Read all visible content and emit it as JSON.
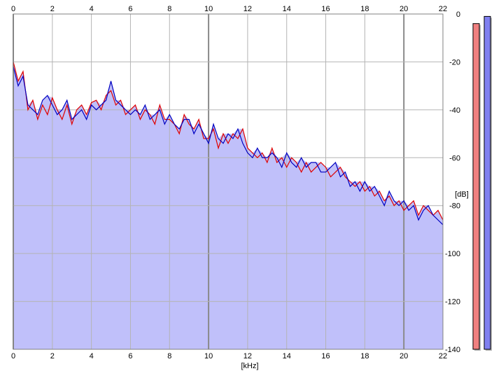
{
  "chart_data": {
    "type": "area",
    "title": "",
    "xlabel": "[kHz]",
    "ylabel": "[dB]",
    "xlim": [
      0,
      22
    ],
    "ylim": [
      -140,
      0
    ],
    "x_ticks": [
      "0",
      "2",
      "4",
      "6",
      "8",
      "10",
      "12",
      "14",
      "16",
      "18",
      "20",
      "22"
    ],
    "y_ticks": [
      "0",
      "-20",
      "-40",
      "-60",
      "-80",
      "-100",
      "-120",
      "-140"
    ],
    "grid": true,
    "fill_color": "#c0c0fa",
    "series": [
      {
        "color": "#e00000",
        "x": [
          0,
          0.25,
          0.5,
          0.75,
          1,
          1.25,
          1.5,
          1.75,
          2,
          2.25,
          2.5,
          2.75,
          3,
          3.25,
          3.5,
          3.75,
          4,
          4.25,
          4.5,
          4.75,
          5,
          5.25,
          5.5,
          5.75,
          6,
          6.25,
          6.5,
          6.75,
          7,
          7.25,
          7.5,
          7.75,
          8,
          8.25,
          8.5,
          8.75,
          9,
          9.25,
          9.5,
          9.75,
          10,
          10.25,
          10.5,
          10.75,
          11,
          11.25,
          11.5,
          11.75,
          12,
          12.25,
          12.5,
          12.75,
          13,
          13.25,
          13.5,
          13.75,
          14,
          14.25,
          14.5,
          14.75,
          15,
          15.25,
          15.5,
          15.75,
          16,
          16.25,
          16.5,
          16.75,
          17,
          17.25,
          17.5,
          17.75,
          18,
          18.25,
          18.5,
          18.75,
          19,
          19.25,
          19.5,
          19.75,
          20,
          20.25,
          20.5,
          20.75,
          21,
          21.25,
          21.5,
          21.75,
          22
        ],
        "values": [
          -20,
          -28,
          -24,
          -40,
          -36,
          -44,
          -38,
          -42,
          -35,
          -40,
          -44,
          -38,
          -46,
          -40,
          -38,
          -42,
          -37,
          -36,
          -40,
          -34,
          -32,
          -38,
          -36,
          -42,
          -40,
          -38,
          -44,
          -40,
          -42,
          -46,
          -38,
          -44,
          -44,
          -46,
          -50,
          -42,
          -46,
          -48,
          -44,
          -52,
          -52,
          -48,
          -56,
          -50,
          -54,
          -50,
          -52,
          -48,
          -56,
          -58,
          -60,
          -58,
          -62,
          -56,
          -62,
          -60,
          -64,
          -60,
          -62,
          -66,
          -62,
          -66,
          -64,
          -62,
          -64,
          -68,
          -66,
          -64,
          -68,
          -70,
          -72,
          -70,
          -74,
          -72,
          -76,
          -74,
          -78,
          -76,
          -80,
          -78,
          -82,
          -80,
          -78,
          -84,
          -80,
          -82,
          -84,
          -82,
          -86
        ]
      },
      {
        "color": "#0000c0",
        "x": [
          0,
          0.25,
          0.5,
          0.75,
          1,
          1.25,
          1.5,
          1.75,
          2,
          2.25,
          2.5,
          2.75,
          3,
          3.25,
          3.5,
          3.75,
          4,
          4.25,
          4.5,
          4.75,
          5,
          5.25,
          5.5,
          5.75,
          6,
          6.25,
          6.5,
          6.75,
          7,
          7.25,
          7.5,
          7.75,
          8,
          8.25,
          8.5,
          8.75,
          9,
          9.25,
          9.5,
          9.75,
          10,
          10.25,
          10.5,
          10.75,
          11,
          11.25,
          11.5,
          11.75,
          12,
          12.25,
          12.5,
          12.75,
          13,
          13.25,
          13.5,
          13.75,
          14,
          14.25,
          14.5,
          14.75,
          15,
          15.25,
          15.5,
          15.75,
          16,
          16.25,
          16.5,
          16.75,
          17,
          17.25,
          17.5,
          17.75,
          18,
          18.25,
          18.5,
          18.75,
          19,
          19.25,
          19.5,
          19.75,
          20,
          20.25,
          20.5,
          20.75,
          21,
          21.25,
          21.5,
          21.75,
          22
        ],
        "values": [
          -22,
          -30,
          -26,
          -38,
          -40,
          -42,
          -36,
          -34,
          -38,
          -42,
          -40,
          -36,
          -44,
          -42,
          -40,
          -44,
          -38,
          -40,
          -38,
          -36,
          -28,
          -36,
          -38,
          -40,
          -42,
          -40,
          -42,
          -38,
          -44,
          -42,
          -40,
          -46,
          -42,
          -46,
          -48,
          -44,
          -44,
          -50,
          -46,
          -50,
          -54,
          -46,
          -52,
          -54,
          -50,
          -52,
          -48,
          -54,
          -58,
          -60,
          -56,
          -60,
          -60,
          -58,
          -60,
          -64,
          -58,
          -62,
          -64,
          -60,
          -64,
          -62,
          -62,
          -66,
          -66,
          -64,
          -62,
          -68,
          -66,
          -72,
          -70,
          -74,
          -70,
          -74,
          -72,
          -76,
          -80,
          -74,
          -78,
          -80,
          -78,
          -82,
          -80,
          -86,
          -82,
          -80,
          -84,
          -86,
          -88
        ]
      }
    ],
    "level_meters": [
      {
        "color": "#f08080",
        "level_db": -4
      },
      {
        "color": "#8080f0",
        "level_db": -1
      }
    ]
  }
}
